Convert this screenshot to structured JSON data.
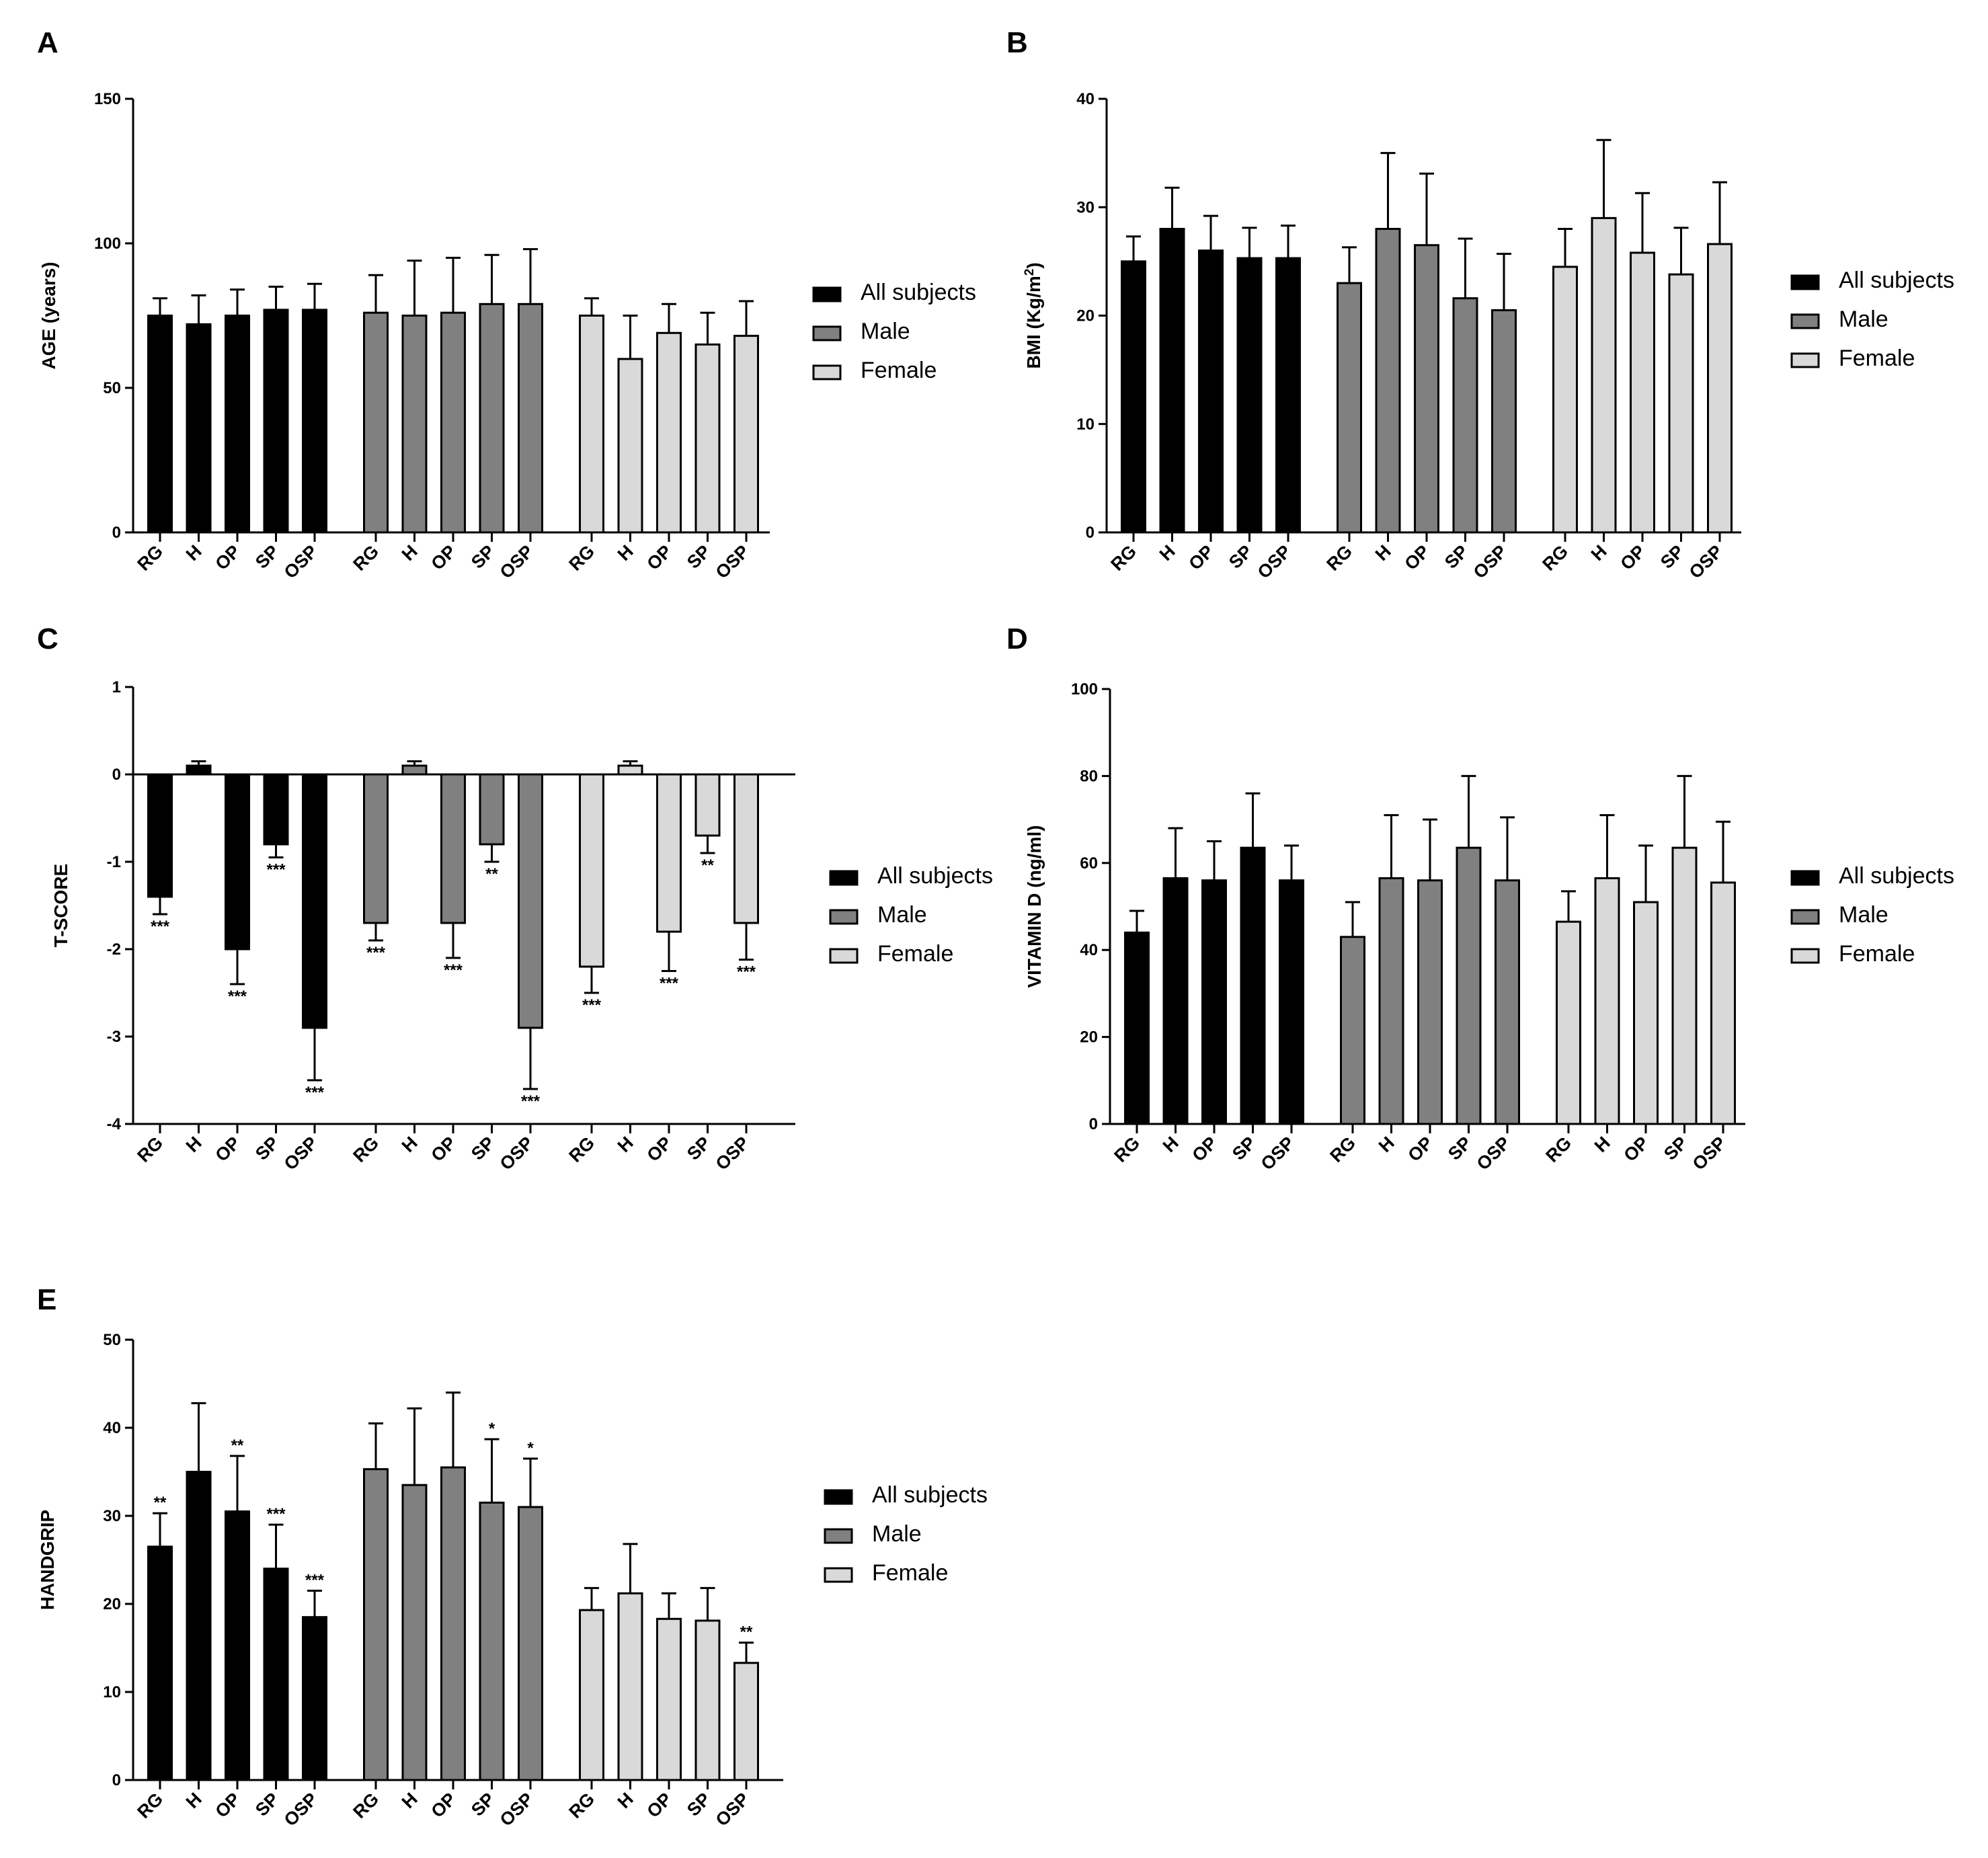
{
  "colors": {
    "all": "#000000",
    "male": "#808080",
    "female": "#d9d9d9",
    "stroke": "#000000"
  },
  "legend": [
    "All subjects",
    "Male",
    "Female"
  ],
  "categories": [
    "RG",
    "H",
    "OP",
    "SP",
    "OSP"
  ],
  "chart_data": [
    {
      "panel": "A",
      "type": "bar",
      "ylabel": "AGE (years)",
      "ylim": [
        0,
        150
      ],
      "yticks": [
        0,
        50,
        100,
        150
      ],
      "categories": [
        "RG",
        "H",
        "OP",
        "SP",
        "OSP"
      ],
      "series": [
        {
          "name": "All subjects",
          "values": [
            75,
            72,
            75,
            77,
            77
          ],
          "errors": [
            6,
            10,
            9,
            8,
            9
          ],
          "sig": [
            "",
            "",
            "",
            "",
            ""
          ]
        },
        {
          "name": "Male",
          "values": [
            76,
            75,
            76,
            79,
            79
          ],
          "errors": [
            13,
            19,
            19,
            17,
            19
          ],
          "sig": [
            "",
            "",
            "",
            "",
            ""
          ]
        },
        {
          "name": "Female",
          "values": [
            75,
            60,
            69,
            65,
            68
          ],
          "errors": [
            6,
            15,
            10,
            11,
            12
          ],
          "sig": [
            "",
            "",
            "",
            "",
            ""
          ]
        }
      ]
    },
    {
      "panel": "B",
      "type": "bar",
      "ylabel": "BMI (Kg/m²)",
      "ylim": [
        0,
        40
      ],
      "yticks": [
        0,
        10,
        20,
        30,
        40
      ],
      "categories": [
        "RG",
        "H",
        "OP",
        "SP",
        "OSP"
      ],
      "series": [
        {
          "name": "All subjects",
          "values": [
            25,
            28,
            26,
            25.3,
            25.3
          ],
          "errors": [
            2.3,
            3.8,
            3.2,
            2.8,
            3
          ],
          "sig": [
            "",
            "",
            "",
            "",
            ""
          ]
        },
        {
          "name": "Male",
          "values": [
            23,
            28,
            26.5,
            21.6,
            20.5
          ],
          "errors": [
            3.3,
            7,
            6.6,
            5.5,
            5.2
          ],
          "sig": [
            "",
            "",
            "",
            "",
            ""
          ]
        },
        {
          "name": "Female",
          "values": [
            24.5,
            29,
            25.8,
            23.8,
            26.6
          ],
          "errors": [
            3.5,
            7.2,
            5.5,
            4.3,
            5.7
          ],
          "sig": [
            "",
            "",
            "",
            "",
            ""
          ]
        }
      ]
    },
    {
      "panel": "C",
      "type": "bar",
      "ylabel": "T-SCORE",
      "ylim": [
        -4,
        1
      ],
      "yticks": [
        -4,
        -3,
        -2,
        -1,
        0,
        1
      ],
      "categories": [
        "RG",
        "H",
        "OP",
        "SP",
        "OSP"
      ],
      "series": [
        {
          "name": "All subjects",
          "values": [
            -1.4,
            0.1,
            -2,
            -0.8,
            -2.9
          ],
          "errors": [
            0.2,
            0.05,
            0.4,
            0.15,
            0.6
          ],
          "sig": [
            "***",
            "",
            "***",
            "***",
            "***"
          ]
        },
        {
          "name": "Male",
          "values": [
            -1.7,
            0.1,
            -1.7,
            -0.8,
            -2.9
          ],
          "errors": [
            0.2,
            0.05,
            0.4,
            0.2,
            0.7
          ],
          "sig": [
            "***",
            "",
            "***",
            "**",
            "***"
          ]
        },
        {
          "name": "Female",
          "values": [
            -2.2,
            0.1,
            -1.8,
            -0.7,
            -1.7
          ],
          "errors": [
            0.3,
            0.05,
            0.45,
            0.2,
            0.42
          ],
          "sig": [
            "***",
            "",
            "***",
            "**",
            "***"
          ]
        }
      ]
    },
    {
      "panel": "D",
      "type": "bar",
      "ylabel": "VITAMIN D (ng/ml)",
      "ylim": [
        0,
        100
      ],
      "yticks": [
        0,
        20,
        40,
        60,
        80,
        100
      ],
      "categories": [
        "RG",
        "H",
        "OP",
        "SP",
        "OSP"
      ],
      "series": [
        {
          "name": "All subjects",
          "values": [
            44,
            56.5,
            56,
            63.5,
            56
          ],
          "errors": [
            5,
            11.5,
            9,
            12.5,
            8
          ],
          "sig": [
            "",
            "",
            "",
            "",
            ""
          ]
        },
        {
          "name": "Male",
          "values": [
            43,
            56.5,
            56,
            63.5,
            56
          ],
          "errors": [
            8,
            14.5,
            14,
            16.5,
            14.5
          ],
          "sig": [
            "",
            "",
            "",
            "",
            ""
          ]
        },
        {
          "name": "Female",
          "values": [
            46.5,
            56.5,
            51,
            63.5,
            55.5
          ],
          "errors": [
            7,
            14.5,
            13,
            16.5,
            14
          ],
          "sig": [
            "",
            "",
            "",
            "",
            ""
          ]
        }
      ]
    },
    {
      "panel": "E",
      "type": "bar",
      "ylabel": "HANDGRIP",
      "ylim": [
        0,
        50
      ],
      "yticks": [
        0,
        10,
        20,
        30,
        40,
        50
      ],
      "categories": [
        "RG",
        "H",
        "OP",
        "SP",
        "OSP"
      ],
      "series": [
        {
          "name": "All subjects",
          "values": [
            26.5,
            35,
            30.5,
            24,
            18.5
          ],
          "errors": [
            3.8,
            7.8,
            6.3,
            5,
            3
          ],
          "sig": [
            "**",
            "",
            "**",
            "***",
            "***"
          ]
        },
        {
          "name": "Male",
          "values": [
            35.3,
            33.5,
            35.5,
            31.5,
            31
          ],
          "errors": [
            5.2,
            8.7,
            8.5,
            7.2,
            5.5
          ],
          "sig": [
            "",
            "",
            "",
            "*",
            "*"
          ]
        },
        {
          "name": "Female",
          "values": [
            19.3,
            21.2,
            18.3,
            18.1,
            13.3
          ],
          "errors": [
            2.5,
            5.6,
            2.9,
            3.7,
            2.3
          ],
          "sig": [
            "",
            "",
            "",
            "",
            "**"
          ]
        }
      ]
    }
  ]
}
